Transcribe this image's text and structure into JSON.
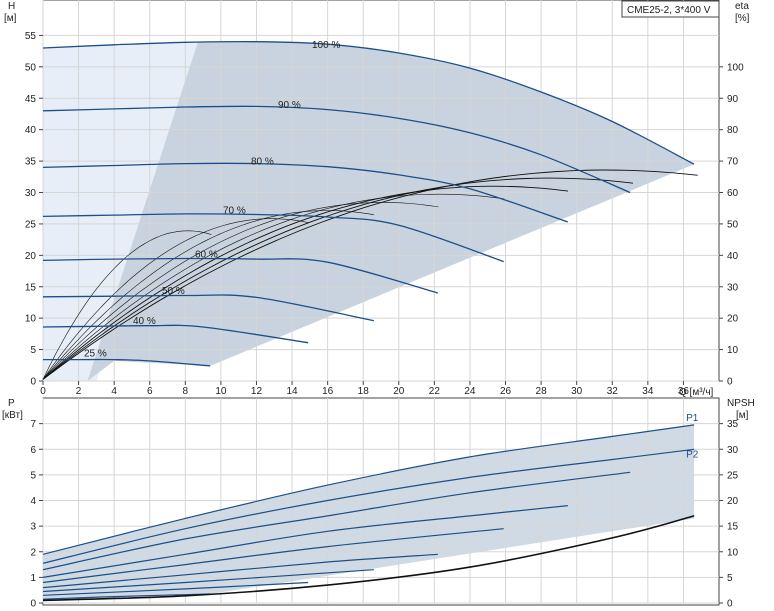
{
  "model_label": "CME25-2, 3*400 V",
  "colors": {
    "curve_blue": "#1c4f87",
    "band_fill": "#c8d3df",
    "low_band_fill": "#e7eef8",
    "grid": "#d6d6d6",
    "axis": "#444444",
    "text": "#222222"
  },
  "chart_data": [
    {
      "type": "line",
      "name": "head",
      "y_left_label": "H",
      "y_left_unit": "[м]",
      "y_right_label": "eta",
      "y_right_unit": "[%]",
      "x_label": "Q [м³/ч]",
      "xlim": [
        0,
        38
      ],
      "ylim": [
        0,
        60
      ],
      "y2lim": [
        0,
        120
      ],
      "x_ticks": [
        0,
        2,
        4,
        6,
        8,
        10,
        12,
        14,
        16,
        18,
        20,
        22,
        24,
        26,
        28,
        30,
        32,
        34,
        36
      ],
      "y_ticks": [
        0,
        5,
        10,
        15,
        20,
        25,
        30,
        35,
        40,
        45,
        50,
        55
      ],
      "y2_ticks": [
        0,
        10,
        20,
        30,
        40,
        50,
        60,
        70,
        80,
        90,
        100
      ],
      "grid": true,
      "series": [
        {
          "name": "100 %",
          "x": [
            0,
            4,
            8,
            12,
            16,
            20,
            24,
            28,
            32,
            36.6
          ],
          "y": [
            53,
            53.5,
            53.9,
            54,
            53.6,
            52.2,
            49.8,
            46,
            41.3,
            34.5
          ]
        },
        {
          "name": "90 %",
          "x": [
            0,
            4,
            8,
            12,
            16,
            20,
            24,
            28,
            33
          ],
          "y": [
            43,
            43.3,
            43.6,
            43.7,
            43.2,
            41.8,
            39.5,
            36,
            30
          ]
        },
        {
          "name": "80 %",
          "x": [
            0,
            4,
            8,
            12,
            16,
            20,
            24,
            29.5
          ],
          "y": [
            34,
            34.3,
            34.6,
            34.6,
            34.1,
            32.8,
            30.6,
            25.3
          ]
        },
        {
          "name": "70 %",
          "x": [
            0,
            4,
            8,
            12,
            16,
            20,
            25.9
          ],
          "y": [
            26.2,
            26.4,
            26.6,
            26.5,
            26.1,
            24.8,
            19
          ]
        },
        {
          "name": "60 %",
          "x": [
            0,
            4,
            8,
            12,
            16,
            22.2
          ],
          "y": [
            19.2,
            19.4,
            19.5,
            19.4,
            18.9,
            14
          ]
        },
        {
          "name": "50 %",
          "x": [
            0,
            4,
            8,
            12,
            18.6
          ],
          "y": [
            13.4,
            13.5,
            13.6,
            13.3,
            9.6
          ]
        },
        {
          "name": "40 %",
          "x": [
            0,
            3,
            6,
            9,
            14.9
          ],
          "y": [
            8.6,
            8.7,
            8.8,
            8.6,
            6.1
          ]
        },
        {
          "name": "25 %",
          "x": [
            0,
            2,
            4,
            6,
            9.4
          ],
          "y": [
            3.4,
            3.4,
            3.4,
            3.2,
            2.4
          ]
        }
      ]
    },
    {
      "type": "line",
      "name": "power-npsh",
      "y_left_label": "P",
      "y_left_unit": "[кВт]",
      "y_right_label": "NPSH",
      "y_right_unit": "[м]",
      "xlim": [
        0,
        38
      ],
      "ylim": [
        0,
        8
      ],
      "y2lim": [
        0,
        40
      ],
      "y_ticks": [
        0,
        1,
        2,
        3,
        4,
        5,
        6,
        7
      ],
      "y2_ticks": [
        0,
        5,
        10,
        15,
        20,
        25,
        30,
        35
      ],
      "grid": true,
      "series": [
        {
          "name": "P1",
          "x": [
            0,
            8,
            16,
            24,
            32,
            36.6
          ],
          "y": [
            1.9,
            3.3,
            4.6,
            5.7,
            6.5,
            6.95
          ]
        },
        {
          "name": "P2",
          "x": [
            0,
            8,
            16,
            24,
            32,
            36.6
          ],
          "y": [
            1.55,
            2.9,
            4.0,
            4.9,
            5.6,
            6.0
          ]
        },
        {
          "name": "",
          "x": [
            0,
            8,
            16,
            24,
            33
          ],
          "y": [
            1.3,
            2.5,
            3.4,
            4.3,
            5.1
          ]
        },
        {
          "name": "",
          "x": [
            0,
            8,
            16,
            24,
            29.5
          ],
          "y": [
            1.0,
            1.9,
            2.8,
            3.4,
            3.8
          ]
        },
        {
          "name": "",
          "x": [
            0,
            8,
            16,
            25.9
          ],
          "y": [
            0.8,
            1.5,
            2.2,
            2.9
          ]
        },
        {
          "name": "",
          "x": [
            0,
            8,
            16,
            22.2
          ],
          "y": [
            0.6,
            1.1,
            1.6,
            1.9
          ]
        },
        {
          "name": "",
          "x": [
            0,
            8,
            18.6
          ],
          "y": [
            0.45,
            0.8,
            1.3
          ]
        },
        {
          "name": "",
          "x": [
            0,
            8,
            14.9
          ],
          "y": [
            0.3,
            0.55,
            0.8
          ]
        },
        {
          "name": "",
          "x": [
            0,
            4,
            9.4
          ],
          "y": [
            0.15,
            0.25,
            0.35
          ]
        },
        {
          "name": "",
          "axis": "right",
          "x": [
            0,
            8,
            16,
            24,
            32,
            36.6
          ],
          "y": [
            0.5,
            1.4,
            3.5,
            7.0,
            12.7,
            17.0
          ]
        }
      ]
    }
  ]
}
